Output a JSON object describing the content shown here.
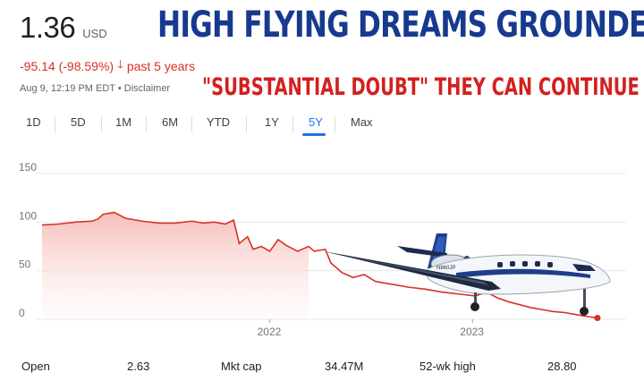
{
  "quote": {
    "price": "1.36",
    "currency": "USD",
    "change": "-95.14 (-98.59%)",
    "period": "past 5 years",
    "asof": "Aug 9, 12:19 PM EDT • Disclaimer"
  },
  "headline": "HIGH FLYING DREAMS GROUNDED",
  "subheadline": "\"SUBSTANTIAL DOUBT\" THEY CAN CONTINUE",
  "tabs": [
    "1D",
    "5D",
    "1M",
    "6M",
    "YTD",
    "1Y",
    "5Y",
    "Max"
  ],
  "active_tab": "5Y",
  "stats": {
    "open_label": "Open",
    "open_value": "2.63",
    "mktcap_label": "Mkt cap",
    "mktcap_value": "34.47M",
    "high_label": "52-wk high",
    "high_value": "28.80"
  },
  "plane": {
    "tail_label": "N860JP"
  },
  "colors": {
    "line": "#d93025",
    "fill": "#fbe3e1",
    "accent": "#1a73e8",
    "headline": "#173a8f",
    "subhead": "#d3201f"
  },
  "chart_data": {
    "type": "area",
    "y_ticks": [
      "150",
      "100",
      "50",
      "0"
    ],
    "x_ticks": [
      "2022",
      "2023"
    ],
    "ylim": [
      0,
      150
    ],
    "grid": true,
    "prev_close_split": 0.24,
    "points": [
      [
        0.0,
        97
      ],
      [
        0.03,
        98
      ],
      [
        0.06,
        100
      ],
      [
        0.09,
        101
      ],
      [
        0.1,
        103
      ],
      [
        0.11,
        108
      ],
      [
        0.13,
        110
      ],
      [
        0.15,
        104
      ],
      [
        0.18,
        101
      ],
      [
        0.21,
        99
      ],
      [
        0.24,
        99
      ],
      [
        0.27,
        101
      ],
      [
        0.29,
        99
      ],
      [
        0.31,
        100
      ],
      [
        0.33,
        98
      ],
      [
        0.345,
        102
      ],
      [
        0.355,
        78
      ],
      [
        0.37,
        85
      ],
      [
        0.38,
        72
      ],
      [
        0.395,
        75
      ],
      [
        0.41,
        70
      ],
      [
        0.425,
        82
      ],
      [
        0.44,
        76
      ],
      [
        0.46,
        70
      ],
      [
        0.48,
        75
      ],
      [
        0.49,
        70
      ],
      [
        0.51,
        72
      ],
      [
        0.52,
        58
      ],
      [
        0.54,
        48
      ],
      [
        0.56,
        43
      ],
      [
        0.58,
        46
      ],
      [
        0.6,
        39
      ],
      [
        0.62,
        37
      ],
      [
        0.64,
        35
      ],
      [
        0.66,
        33
      ],
      [
        0.69,
        31
      ],
      [
        0.72,
        28
      ],
      [
        0.75,
        26
      ],
      [
        0.78,
        24
      ],
      [
        0.8,
        28
      ],
      [
        0.82,
        22
      ],
      [
        0.84,
        18
      ],
      [
        0.86,
        15
      ],
      [
        0.88,
        12
      ],
      [
        0.9,
        10
      ],
      [
        0.92,
        8
      ],
      [
        0.94,
        7
      ],
      [
        0.96,
        5
      ],
      [
        0.98,
        3
      ],
      [
        1.0,
        1.36
      ]
    ]
  }
}
